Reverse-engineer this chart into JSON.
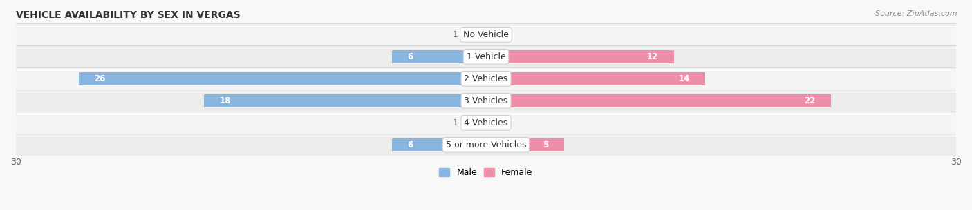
{
  "title": "VEHICLE AVAILABILITY BY SEX IN VERGAS",
  "source": "Source: ZipAtlas.com",
  "categories": [
    "No Vehicle",
    "1 Vehicle",
    "2 Vehicles",
    "3 Vehicles",
    "4 Vehicles",
    "5 or more Vehicles"
  ],
  "male_values": [
    1,
    6,
    26,
    18,
    1,
    6
  ],
  "female_values": [
    0,
    12,
    14,
    22,
    0,
    5
  ],
  "male_color": "#88b4e0",
  "female_color": "#f08eaa",
  "male_color_dark": "#5c9fd4",
  "female_color_dark": "#e8607a",
  "row_bg_color_light": "#f5f5f5",
  "row_bg_color_dark": "#ececec",
  "xlim": 30,
  "legend_male": "Male",
  "legend_female": "Female",
  "label_inside_threshold": 4,
  "label_color_inside": "#ffffff",
  "label_color_outside": "#666666",
  "category_label_fontsize": 9,
  "value_label_fontsize": 8.5,
  "title_fontsize": 10,
  "source_fontsize": 8,
  "bar_height": 0.58,
  "figsize": [
    14.06,
    3.05
  ],
  "dpi": 100
}
